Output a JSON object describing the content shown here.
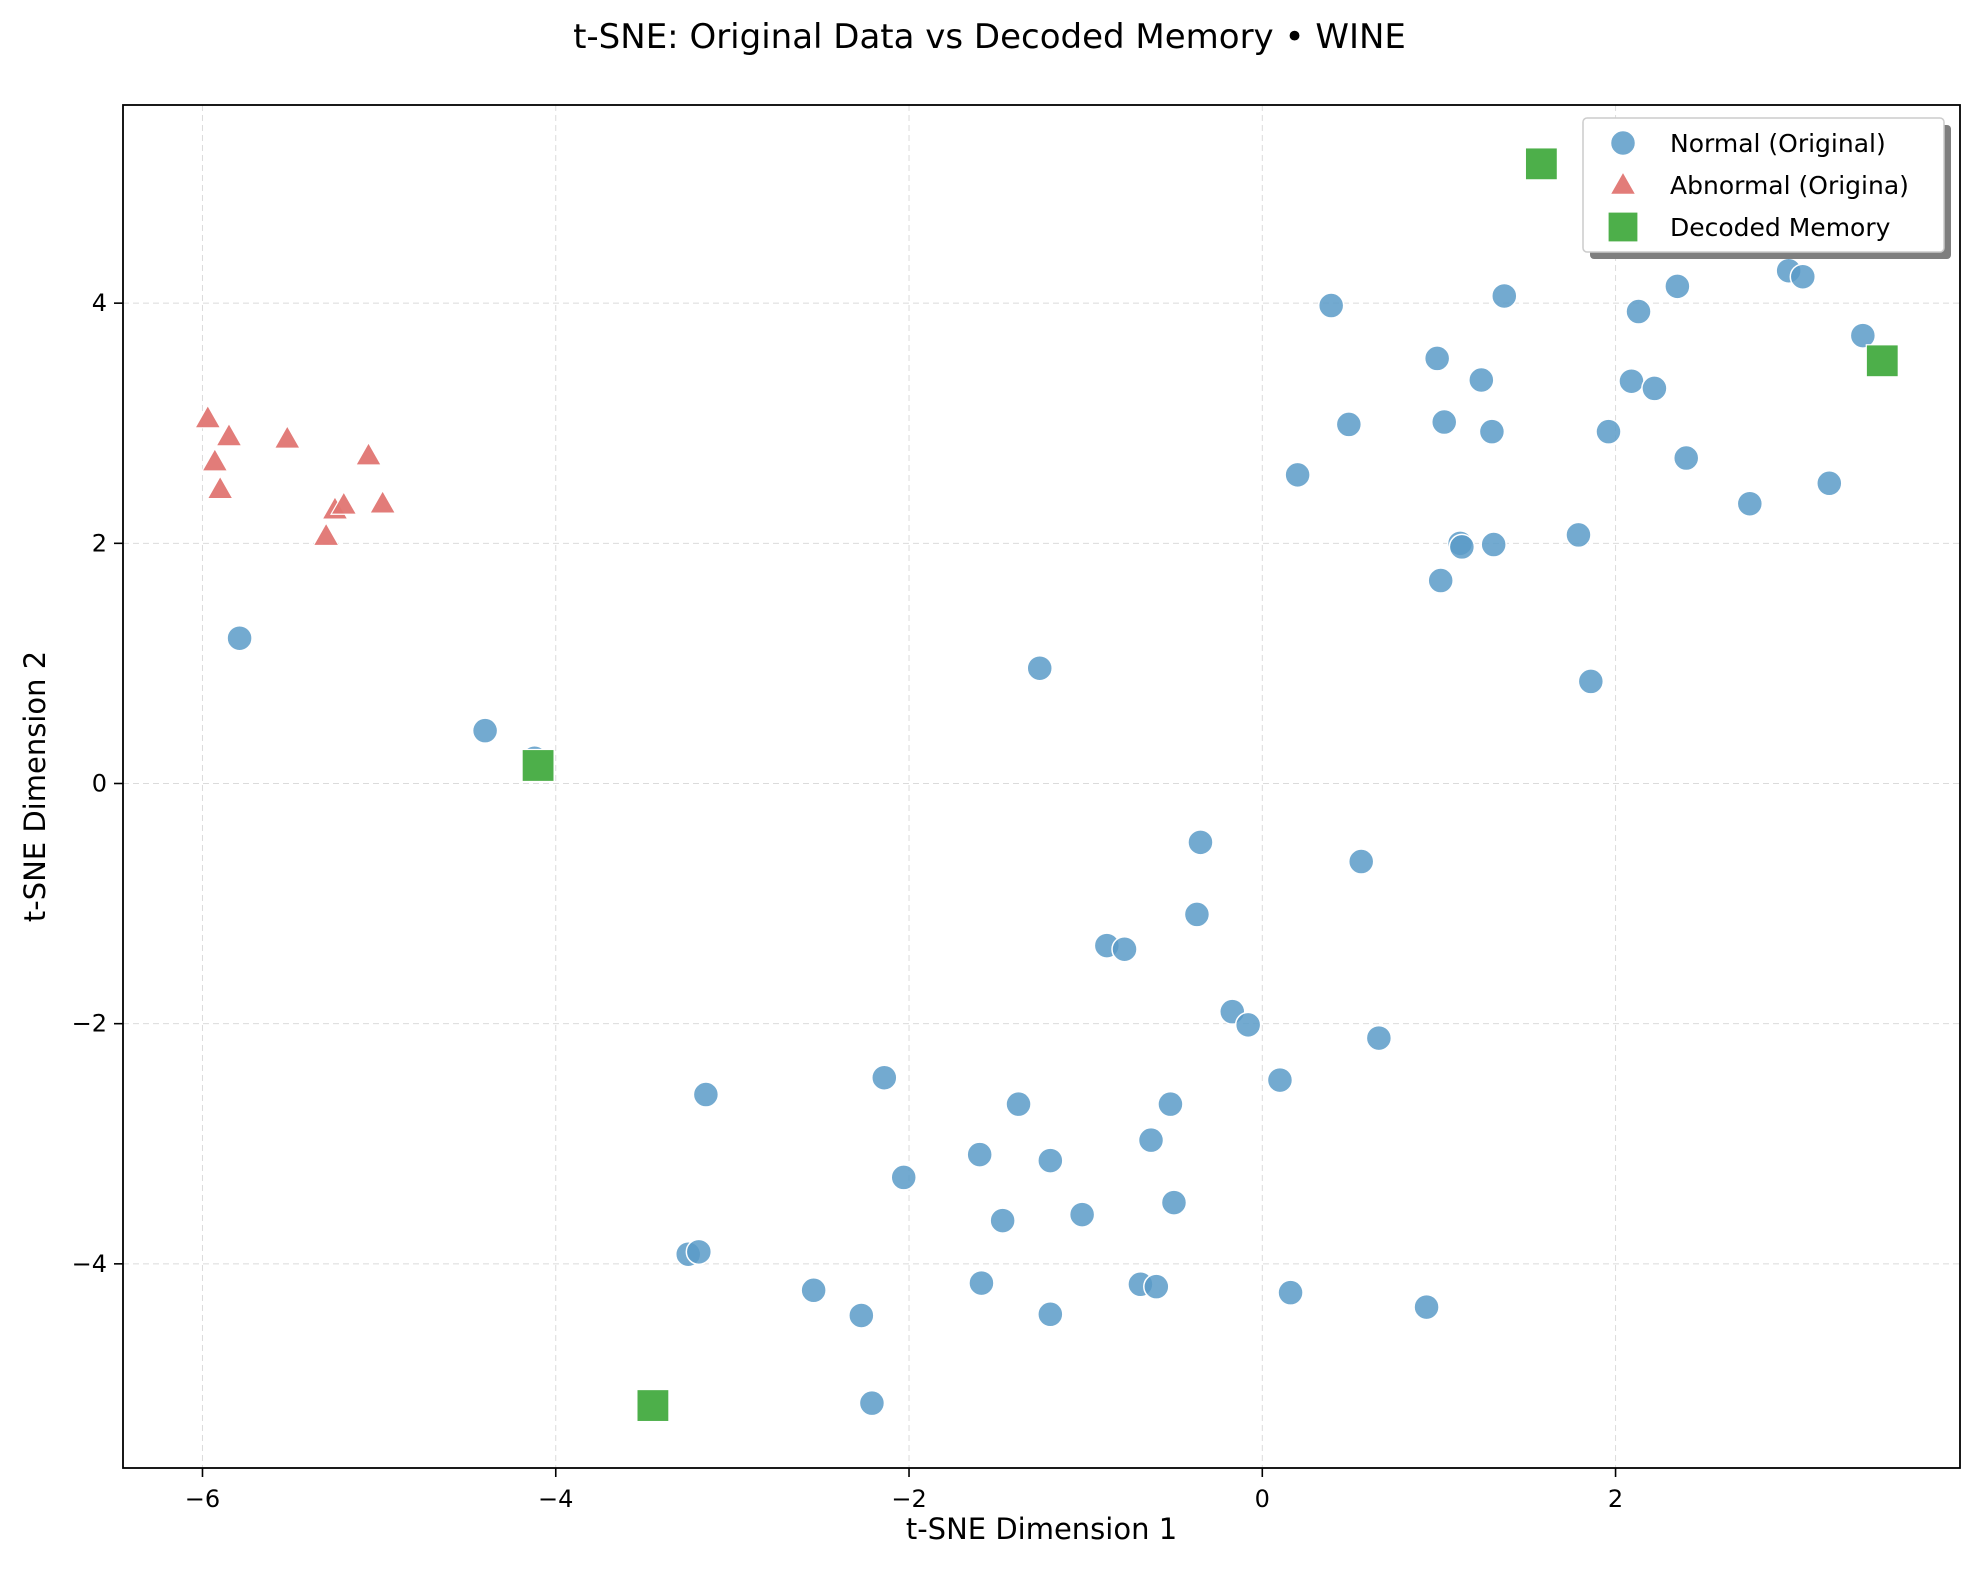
{
  "chart_data": {
    "type": "scatter",
    "title": "t-SNE: Original Data vs Decoded Memory • WINE",
    "xlabel": "t-SNE Dimension 1",
    "ylabel": "t-SNE Dimension 2",
    "xlim": [
      -6.45,
      3.95
    ],
    "ylim": [
      -5.7,
      5.65
    ],
    "xticks": [
      -6,
      -4,
      -2,
      0,
      2
    ],
    "yticks": [
      -4,
      -2,
      0,
      2,
      4
    ],
    "grid": true,
    "legend_position": "top-right",
    "series": [
      {
        "name": "Normal (Original)",
        "marker": "circle",
        "color": "#5b9bc8",
        "points": [
          [
            -5.79,
            1.21
          ],
          [
            -4.4,
            0.44
          ],
          [
            -4.12,
            0.21
          ],
          [
            -1.26,
            0.96
          ],
          [
            0.39,
            3.98
          ],
          [
            0.49,
            2.99
          ],
          [
            0.2,
            2.57
          ],
          [
            0.99,
            3.54
          ],
          [
            1.03,
            3.01
          ],
          [
            1.24,
            3.36
          ],
          [
            1.3,
            2.93
          ],
          [
            1.37,
            4.06
          ],
          [
            1.12,
            2.0
          ],
          [
            1.13,
            1.97
          ],
          [
            1.31,
            1.99
          ],
          [
            1.01,
            1.69
          ],
          [
            1.79,
            2.07
          ],
          [
            1.86,
            0.85
          ],
          [
            1.96,
            2.93
          ],
          [
            2.09,
            3.35
          ],
          [
            2.13,
            3.93
          ],
          [
            2.22,
            3.29
          ],
          [
            2.35,
            4.14
          ],
          [
            2.4,
            2.71
          ],
          [
            2.76,
            2.33
          ],
          [
            2.98,
            4.27
          ],
          [
            3.06,
            4.22
          ],
          [
            3.21,
            2.5
          ],
          [
            3.4,
            3.73
          ],
          [
            -0.35,
            -0.49
          ],
          [
            0.56,
            -0.65
          ],
          [
            -0.37,
            -1.09
          ],
          [
            -0.88,
            -1.35
          ],
          [
            -0.78,
            -1.38
          ],
          [
            -0.17,
            -1.9
          ],
          [
            -0.08,
            -2.01
          ],
          [
            0.66,
            -2.12
          ],
          [
            0.1,
            -2.47
          ],
          [
            -0.52,
            -2.67
          ],
          [
            -0.63,
            -2.97
          ],
          [
            -0.5,
            -3.49
          ],
          [
            -3.15,
            -2.59
          ],
          [
            -2.14,
            -2.45
          ],
          [
            -1.38,
            -2.67
          ],
          [
            -1.6,
            -3.09
          ],
          [
            -1.2,
            -3.14
          ],
          [
            -2.03,
            -3.28
          ],
          [
            -1.47,
            -3.64
          ],
          [
            -1.02,
            -3.59
          ],
          [
            -3.25,
            -3.92
          ],
          [
            -3.19,
            -3.9
          ],
          [
            -2.54,
            -4.22
          ],
          [
            -2.27,
            -4.43
          ],
          [
            -2.21,
            -5.16
          ],
          [
            -1.59,
            -4.16
          ],
          [
            -1.2,
            -4.42
          ],
          [
            -0.69,
            -4.17
          ],
          [
            -0.6,
            -4.19
          ],
          [
            0.16,
            -4.24
          ],
          [
            0.93,
            -4.36
          ]
        ]
      },
      {
        "name": "Abnormal (Origina)",
        "marker": "triangle",
        "color": "#e07572",
        "points": [
          [
            -5.97,
            3.04
          ],
          [
            -5.85,
            2.89
          ],
          [
            -5.93,
            2.68
          ],
          [
            -5.9,
            2.45
          ],
          [
            -5.52,
            2.87
          ],
          [
            -5.06,
            2.73
          ],
          [
            -5.25,
            2.28
          ],
          [
            -5.2,
            2.32
          ],
          [
            -5.3,
            2.06
          ],
          [
            -4.98,
            2.33
          ]
        ]
      },
      {
        "name": "Decoded Memory",
        "marker": "square",
        "color": "#4daf4a",
        "points": [
          [
            1.58,
            5.16
          ],
          [
            3.51,
            3.52
          ],
          [
            -4.1,
            0.15
          ],
          [
            -3.45,
            -5.18
          ]
        ]
      }
    ]
  }
}
